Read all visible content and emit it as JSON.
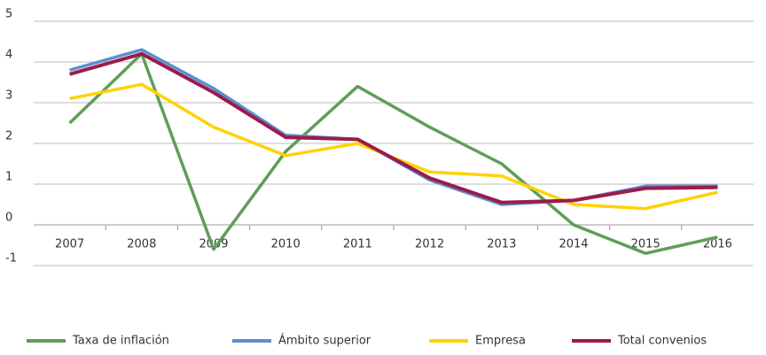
{
  "chart_data": {
    "type": "line",
    "categories": [
      "2007",
      "2008",
      "2009",
      "2010",
      "2011",
      "2012",
      "2013",
      "2014",
      "2015",
      "2016"
    ],
    "series": [
      {
        "name": "Taxa de inflación",
        "color": "#5e9e58",
        "values": [
          2.5,
          4.2,
          -0.6,
          1.8,
          3.4,
          2.4,
          1.5,
          0.0,
          -0.7,
          -0.3
        ]
      },
      {
        "name": "Ámbito superior",
        "color": "#5b8fcf",
        "values": [
          3.8,
          4.3,
          3.35,
          2.2,
          2.1,
          1.1,
          0.5,
          0.6,
          0.95,
          0.95
        ]
      },
      {
        "name": "Empresa",
        "color": "#ffd200",
        "values": [
          3.1,
          3.45,
          2.4,
          1.7,
          2.0,
          1.3,
          1.2,
          0.5,
          0.4,
          0.8
        ]
      },
      {
        "name": "Total convenios",
        "color": "#9b1b4b",
        "values": [
          3.7,
          4.2,
          3.25,
          2.15,
          2.1,
          1.15,
          0.55,
          0.6,
          0.9,
          0.92
        ]
      }
    ],
    "ylim": [
      -1,
      5
    ],
    "yticks": [
      -1,
      0,
      1,
      2,
      3,
      4,
      5
    ],
    "grid": true,
    "legend": "bottom"
  }
}
